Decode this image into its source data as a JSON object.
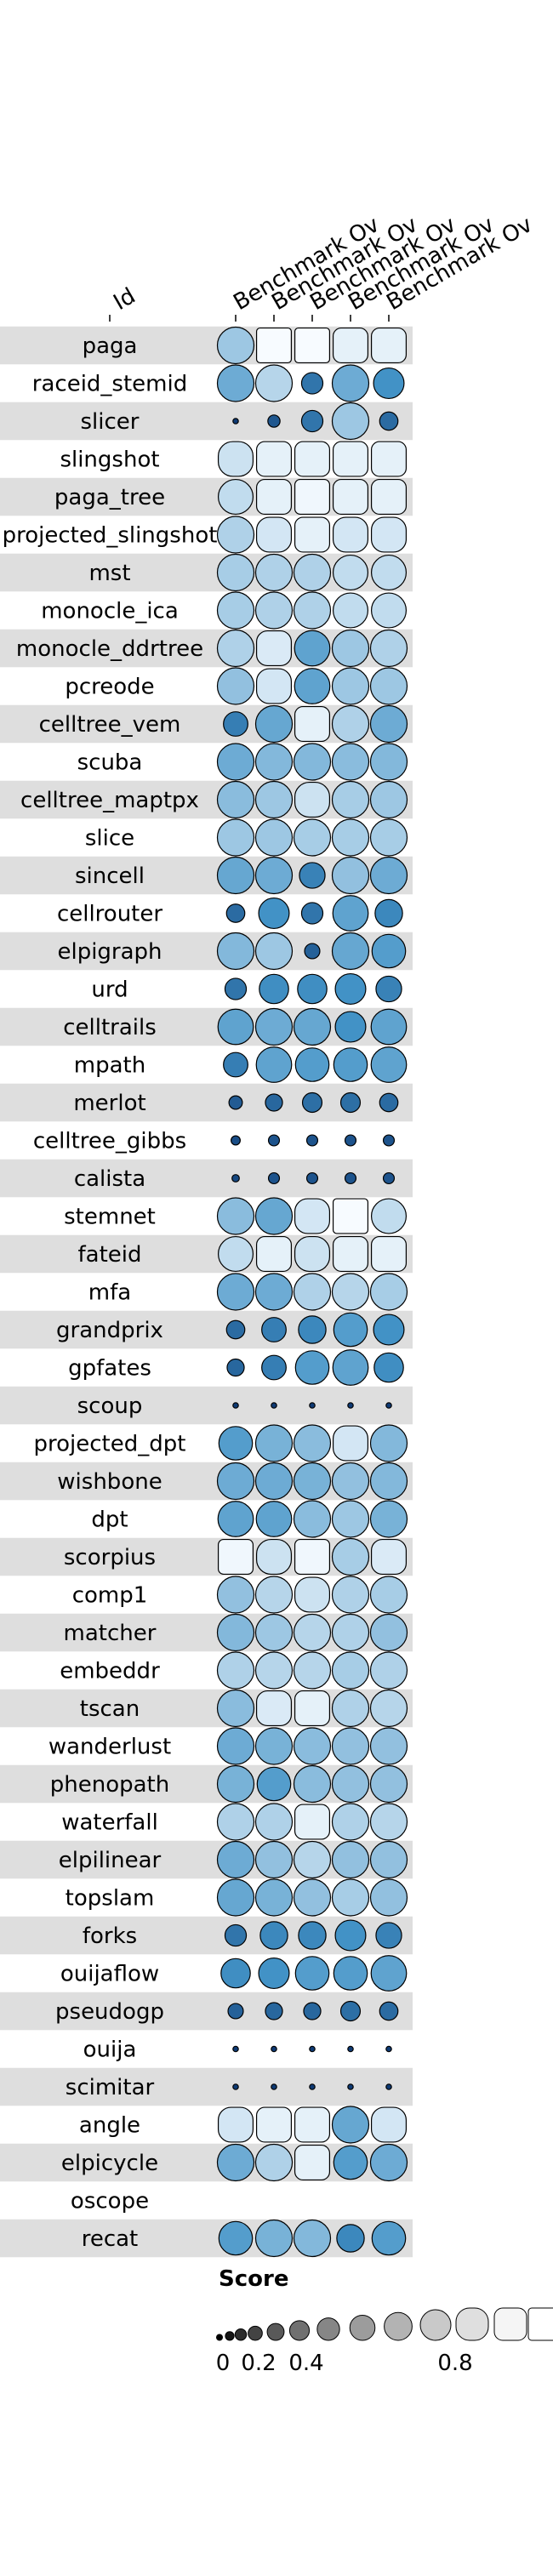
{
  "chart_data": {
    "type": "funkyheatmap",
    "id_column_label": "Id",
    "column_labels": [
      "Benchmark Ov",
      "Benchmark Ov",
      "Benchmark Ov",
      "Benchmark Ov",
      "Benchmark Ov"
    ],
    "rows": [
      {
        "id": "paga",
        "values": [
          0.75,
          1.0,
          1.0,
          0.95,
          0.95
        ]
      },
      {
        "id": "raceid_stemid",
        "values": [
          0.62,
          0.82,
          0.35,
          0.62,
          0.5
        ]
      },
      {
        "id": "slicer",
        "values": [
          0.05,
          0.2,
          0.35,
          0.75,
          0.3
        ]
      },
      {
        "id": "slingshot",
        "values": [
          0.88,
          0.95,
          0.95,
          0.95,
          0.95
        ]
      },
      {
        "id": "paga_tree",
        "values": [
          0.85,
          0.95,
          0.98,
          0.95,
          0.95
        ]
      },
      {
        "id": "projected_slingshot",
        "values": [
          0.8,
          0.9,
          0.95,
          0.9,
          0.9
        ]
      },
      {
        "id": "mst",
        "values": [
          0.78,
          0.8,
          0.8,
          0.85,
          0.85
        ]
      },
      {
        "id": "monocle_ica",
        "values": [
          0.78,
          0.8,
          0.8,
          0.85,
          0.85
        ]
      },
      {
        "id": "monocle_ddrtree",
        "values": [
          0.8,
          0.92,
          0.58,
          0.75,
          0.8
        ]
      },
      {
        "id": "pcreode",
        "values": [
          0.72,
          0.9,
          0.58,
          0.75,
          0.75
        ]
      },
      {
        "id": "celltree_vem",
        "values": [
          0.4,
          0.6,
          0.95,
          0.8,
          0.62
        ]
      },
      {
        "id": "scuba",
        "values": [
          0.62,
          0.68,
          0.68,
          0.7,
          0.68
        ]
      },
      {
        "id": "celltree_maptpx",
        "values": [
          0.7,
          0.75,
          0.88,
          0.78,
          0.75
        ]
      },
      {
        "id": "slice",
        "values": [
          0.75,
          0.75,
          0.78,
          0.78,
          0.78
        ]
      },
      {
        "id": "sincell",
        "values": [
          0.6,
          0.62,
          0.42,
          0.72,
          0.62
        ]
      },
      {
        "id": "cellrouter",
        "values": [
          0.3,
          0.5,
          0.35,
          0.58,
          0.45
        ]
      },
      {
        "id": "elpigraph",
        "values": [
          0.68,
          0.75,
          0.25,
          0.6,
          0.55
        ]
      },
      {
        "id": "urd",
        "values": [
          0.35,
          0.48,
          0.48,
          0.5,
          0.42
        ]
      },
      {
        "id": "celltrails",
        "values": [
          0.58,
          0.62,
          0.6,
          0.5,
          0.58
        ]
      },
      {
        "id": "mpath",
        "values": [
          0.4,
          0.58,
          0.55,
          0.55,
          0.58
        ]
      },
      {
        "id": "merlot",
        "values": [
          0.22,
          0.28,
          0.32,
          0.32,
          0.3
        ]
      },
      {
        "id": "celltree_gibbs",
        "values": [
          0.15,
          0.18,
          0.18,
          0.18,
          0.18
        ]
      },
      {
        "id": "calista",
        "values": [
          0.12,
          0.18,
          0.18,
          0.18,
          0.18
        ]
      },
      {
        "id": "stemnet",
        "values": [
          0.7,
          0.6,
          0.9,
          1.0,
          0.85
        ]
      },
      {
        "id": "fateid",
        "values": [
          0.85,
          0.95,
          0.88,
          0.95,
          0.95
        ]
      },
      {
        "id": "mfa",
        "values": [
          0.62,
          0.62,
          0.8,
          0.82,
          0.78
        ]
      },
      {
        "id": "grandprix",
        "values": [
          0.3,
          0.4,
          0.45,
          0.55,
          0.5
        ]
      },
      {
        "id": "gpfates",
        "values": [
          0.28,
          0.4,
          0.55,
          0.58,
          0.48
        ]
      },
      {
        "id": "scoup",
        "values": [
          0.05,
          0.05,
          0.05,
          0.05,
          0.05
        ]
      },
      {
        "id": "projected_dpt",
        "values": [
          0.55,
          0.65,
          0.7,
          0.9,
          0.68
        ]
      },
      {
        "id": "wishbone",
        "values": [
          0.62,
          0.62,
          0.65,
          0.72,
          0.68
        ]
      },
      {
        "id": "dpt",
        "values": [
          0.58,
          0.58,
          0.7,
          0.75,
          0.65
        ]
      },
      {
        "id": "scorpius",
        "values": [
          0.98,
          0.88,
          0.98,
          0.78,
          0.92
        ]
      },
      {
        "id": "comp1",
        "values": [
          0.72,
          0.82,
          0.88,
          0.8,
          0.78
        ]
      },
      {
        "id": "matcher",
        "values": [
          0.68,
          0.75,
          0.82,
          0.8,
          0.72
        ]
      },
      {
        "id": "embeddr",
        "values": [
          0.8,
          0.82,
          0.82,
          0.78,
          0.8
        ]
      },
      {
        "id": "tscan",
        "values": [
          0.7,
          0.92,
          0.95,
          0.8,
          0.82
        ]
      },
      {
        "id": "wanderlust",
        "values": [
          0.62,
          0.65,
          0.7,
          0.72,
          0.72
        ]
      },
      {
        "id": "phenopath",
        "values": [
          0.65,
          0.55,
          0.7,
          0.72,
          0.72
        ]
      },
      {
        "id": "waterfall",
        "values": [
          0.8,
          0.8,
          0.95,
          0.8,
          0.82
        ]
      },
      {
        "id": "elpilinear",
        "values": [
          0.62,
          0.72,
          0.82,
          0.72,
          0.72
        ]
      },
      {
        "id": "topslam",
        "values": [
          0.6,
          0.65,
          0.72,
          0.78,
          0.72
        ]
      },
      {
        "id": "forks",
        "values": [
          0.35,
          0.45,
          0.45,
          0.5,
          0.42
        ]
      },
      {
        "id": "ouijaflow",
        "values": [
          0.48,
          0.5,
          0.55,
          0.55,
          0.58
        ]
      },
      {
        "id": "pseudogp",
        "values": [
          0.25,
          0.28,
          0.28,
          0.32,
          0.3
        ]
      },
      {
        "id": "ouija",
        "values": [
          0.05,
          0.05,
          0.05,
          0.05,
          0.05
        ]
      },
      {
        "id": "scimitar",
        "values": [
          0.05,
          0.05,
          0.05,
          0.05,
          0.05
        ]
      },
      {
        "id": "angle",
        "values": [
          0.9,
          0.95,
          0.95,
          0.6,
          0.9
        ]
      },
      {
        "id": "elpicycle",
        "values": [
          0.62,
          0.8,
          0.95,
          0.55,
          0.62
        ]
      },
      {
        "id": "oscope",
        "values": [
          null,
          null,
          null,
          null,
          null
        ]
      },
      {
        "id": "recat",
        "values": [
          0.55,
          0.65,
          0.68,
          0.45,
          0.55
        ]
      }
    ],
    "legend": {
      "title": "Score",
      "tick_labels": [
        "0",
        "0.2",
        "0.4",
        "0.8"
      ],
      "tick_values": [
        0,
        0.2,
        0.4,
        0.8
      ]
    },
    "colors": {
      "stripe": "#dedede",
      "fill_low": "#08306b",
      "fill_mid": "#4292c6",
      "fill_high": "#f7fbff",
      "legend_low": "#000000",
      "legend_high": "#ffffff"
    }
  }
}
